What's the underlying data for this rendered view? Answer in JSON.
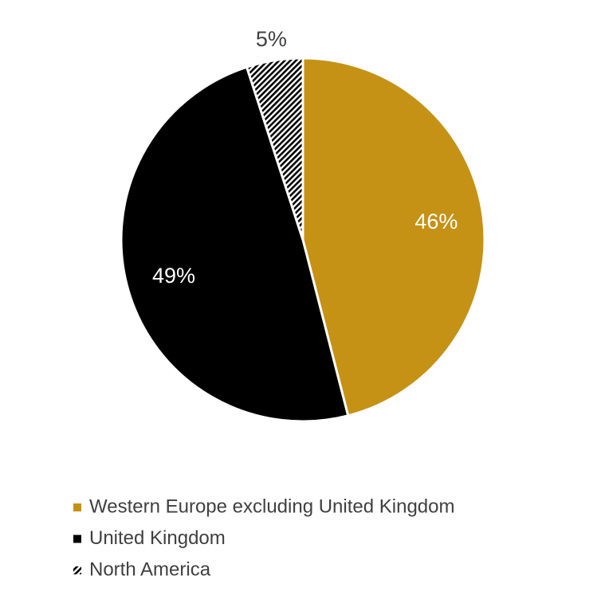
{
  "chart_data": {
    "type": "pie",
    "categories": [
      "Western Europe excluding United Kingdom",
      "United Kingdom",
      "North America"
    ],
    "values": [
      46,
      49,
      5
    ],
    "value_labels": [
      "46%",
      "49%",
      "5%"
    ],
    "colors": [
      "#c59215",
      "#000000",
      "#000000"
    ],
    "hatched": [
      false,
      false,
      true
    ],
    "legend": "bottom"
  }
}
